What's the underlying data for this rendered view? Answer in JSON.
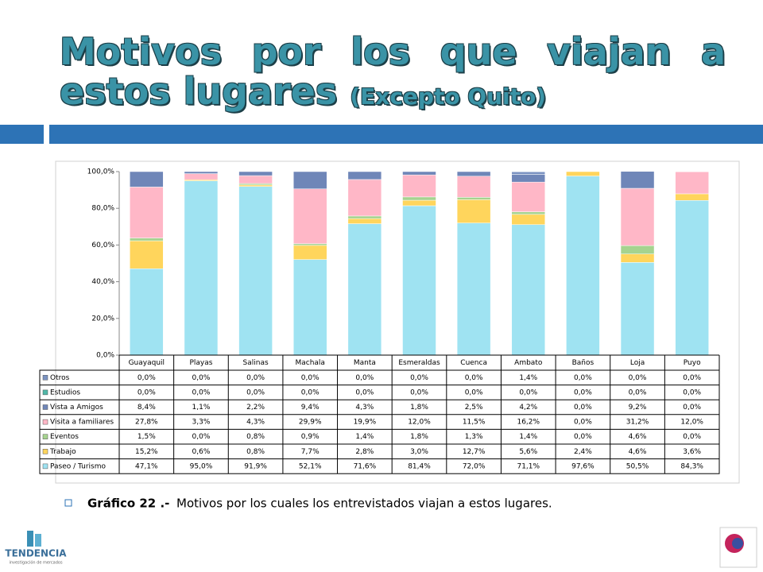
{
  "title": "Motivos por los que viajan a estos lugares",
  "title_note": "(Excepto Quito)",
  "caption_label": "Gráfico 22 .-",
  "caption": "Motivos por los cuales los entrevistados viajan a estos lugares.",
  "logo_left": "TENDENCIA",
  "logo_left_sub": "investigación de mercados",
  "chart_data": {
    "type": "stacked_bar",
    "categories": [
      "Guayaquil",
      "Playas",
      "Salinas",
      "Machala",
      "Manta",
      "Esmeraldas",
      "Cuenca",
      "Ambato",
      "Baños",
      "Loja",
      "Puyo"
    ],
    "ylim": [
      0,
      100
    ],
    "yticks": [
      {
        "value": 0,
        "label": "0,0%"
      },
      {
        "value": 20,
        "label": "20,0%"
      },
      {
        "value": 40,
        "label": "40,0%"
      },
      {
        "value": 60,
        "label": "60,0%"
      },
      {
        "value": 80,
        "label": "80,0%"
      },
      {
        "value": 100,
        "label": "100,0%"
      }
    ],
    "series": [
      {
        "name": "Otros",
        "color": "#7b93c2",
        "values": [
          0,
          0,
          0,
          0,
          0,
          0,
          0,
          1.4,
          0,
          0,
          0
        ],
        "value_labels": [
          "0,0%",
          "0,0%",
          "0,0%",
          "0,0%",
          "0,0%",
          "0,0%",
          "0,0%",
          "1,4%",
          "0,0%",
          "0,0%",
          "0,0%"
        ]
      },
      {
        "name": "Estudios",
        "color": "#4fb8a8",
        "values": [
          0,
          0,
          0,
          0,
          0,
          0,
          0,
          0,
          0,
          0,
          0
        ],
        "value_labels": [
          "0,0%",
          "0,0%",
          "0,0%",
          "0,0%",
          "0,0%",
          "0,0%",
          "0,0%",
          "0,0%",
          "0,0%",
          "0,0%",
          "0,0%"
        ]
      },
      {
        "name": "Vista a Amigos",
        "color": "#6f86b8",
        "values": [
          8.4,
          1.1,
          2.2,
          9.4,
          4.3,
          1.8,
          2.5,
          4.2,
          0,
          9.2,
          0
        ],
        "value_labels": [
          "8,4%",
          "1,1%",
          "2,2%",
          "9,4%",
          "4,3%",
          "1,8%",
          "2,5%",
          "4,2%",
          "0,0%",
          "9,2%",
          "0,0%"
        ]
      },
      {
        "name": "Visita a familiares",
        "color": "#ffb7c7",
        "values": [
          27.8,
          3.3,
          4.3,
          29.9,
          19.9,
          12.0,
          11.5,
          16.2,
          0,
          31.2,
          12.0
        ],
        "value_labels": [
          "27,8%",
          "3,3%",
          "4,3%",
          "29,9%",
          "19,9%",
          "12,0%",
          "11,5%",
          "16,2%",
          "0,0%",
          "31,2%",
          "12,0%"
        ]
      },
      {
        "name": "Eventos",
        "color": "#a6d38f",
        "values": [
          1.5,
          0,
          0.8,
          0.9,
          1.4,
          1.8,
          1.3,
          1.4,
          0,
          4.6,
          0
        ],
        "value_labels": [
          "1,5%",
          "0,0%",
          "0,8%",
          "0,9%",
          "1,4%",
          "1,8%",
          "1,3%",
          "1,4%",
          "0,0%",
          "4,6%",
          "0,0%"
        ]
      },
      {
        "name": "Trabajo",
        "color": "#ffd55c",
        "values": [
          15.2,
          0.6,
          0.8,
          7.7,
          2.8,
          3.0,
          12.7,
          5.6,
          2.4,
          4.6,
          3.6
        ],
        "value_labels": [
          "15,2%",
          "0,6%",
          "0,8%",
          "7,7%",
          "2,8%",
          "3,0%",
          "12,7%",
          "5,6%",
          "2,4%",
          "4,6%",
          "3,6%"
        ]
      },
      {
        "name": "Paseo / Turismo",
        "color": "#9fe3f2",
        "values": [
          47.1,
          95.0,
          91.9,
          52.1,
          71.6,
          81.4,
          72.0,
          71.1,
          97.6,
          50.5,
          84.3
        ],
        "value_labels": [
          "47,1%",
          "95,0%",
          "91,9%",
          "52,1%",
          "71,6%",
          "81,4%",
          "72,0%",
          "71,1%",
          "97,6%",
          "50,5%",
          "84,3%"
        ]
      }
    ]
  }
}
